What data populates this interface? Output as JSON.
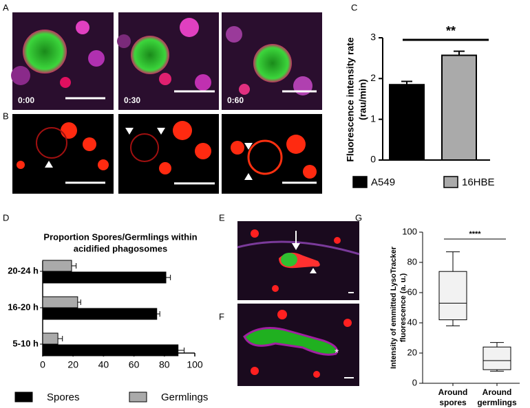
{
  "panels": {
    "labels": [
      "A",
      "B",
      "C",
      "D",
      "E",
      "F",
      "G"
    ],
    "timestamps": [
      "0:00",
      "0:30",
      "0:60"
    ]
  },
  "chart_data": [
    {
      "type": "bar",
      "ylabel": [
        "Fluorescence intensity rate",
        "(rau/min)"
      ],
      "categories": [
        "A549",
        "16HBE"
      ],
      "values": [
        1.85,
        2.57
      ],
      "errors": [
        0.08,
        0.1
      ],
      "colors": [
        "#000000",
        "#aaaaaa"
      ],
      "ylim": [
        0,
        3
      ],
      "yticks": [
        0,
        1,
        2,
        3
      ],
      "annotation": "**",
      "legend": "bottom"
    },
    {
      "type": "hbar",
      "title": [
        "Proportion Spores/Germlings within",
        "acidified phagosomes"
      ],
      "categories": [
        "20-24 h",
        "16-20 h",
        "5-10 h"
      ],
      "series": [
        {
          "name": "Spores",
          "color": "#000000",
          "values": [
            81,
            75,
            89
          ],
          "errors": [
            3,
            2,
            4
          ]
        },
        {
          "name": "Germlings",
          "color": "#aaaaaa",
          "values": [
            19,
            23,
            10
          ],
          "errors": [
            3,
            2,
            3
          ]
        }
      ],
      "xlim": [
        0,
        100
      ],
      "xticks": [
        0,
        20,
        40,
        60,
        80,
        100
      ],
      "legend": "bottom"
    },
    {
      "type": "box",
      "ylabel": [
        "Intensity of emmitted LysoTracker",
        "fluorescence (a. u.)"
      ],
      "categories": [
        [
          "Around",
          "spores"
        ],
        [
          "Around",
          "germlings"
        ]
      ],
      "boxes": [
        {
          "min": 38,
          "q1": 42,
          "median": 53,
          "q3": 74,
          "max": 87
        },
        {
          "min": 8,
          "q1": 9,
          "median": 15,
          "q3": 24,
          "max": 27
        }
      ],
      "color": "#f2f2f2",
      "ylim": [
        0,
        100
      ],
      "yticks": [
        0,
        20,
        40,
        60,
        80,
        100
      ],
      "annotation": "****"
    }
  ]
}
